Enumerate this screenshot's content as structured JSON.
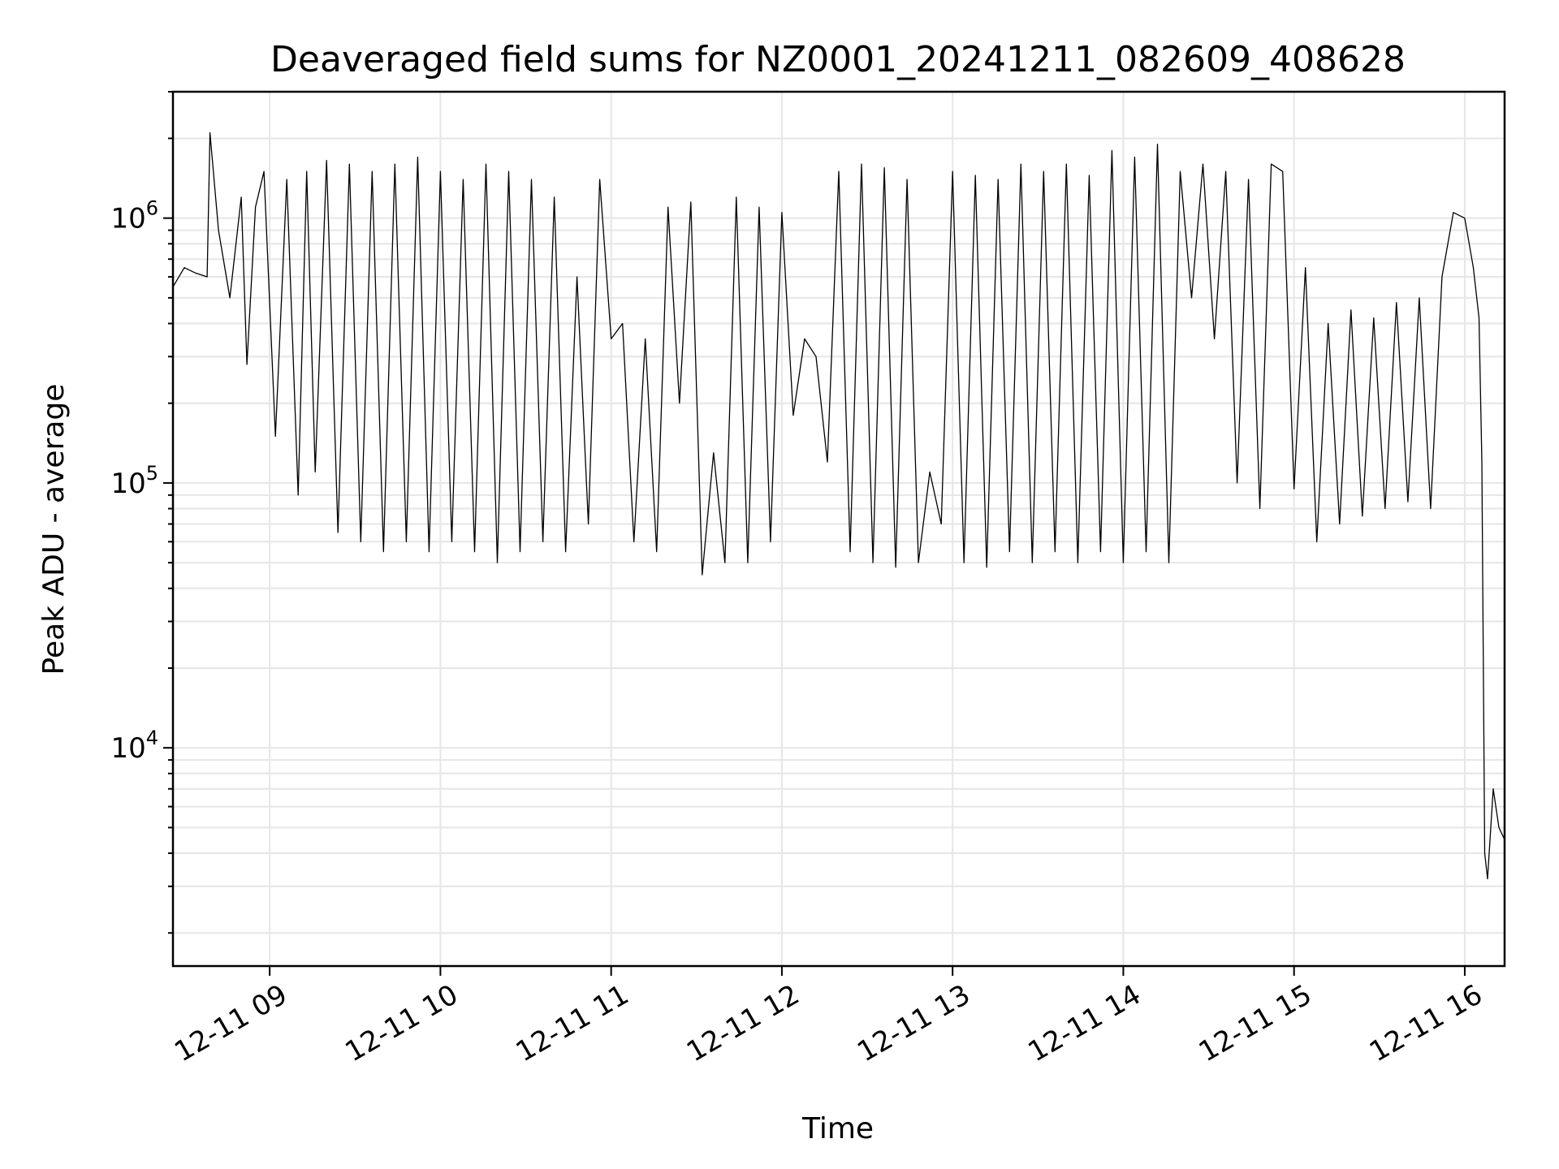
{
  "chart_data": {
    "type": "line",
    "title": "Deaveraged field sums for NZ0001_20241211_082609_408628",
    "xlabel": "Time",
    "ylabel": "Peak ADU - average",
    "xscale": "time",
    "yscale": "log",
    "xlim": [
      "2024-12-11 08:26",
      "2024-12-11 16:14"
    ],
    "ylim": [
      1500,
      3000000
    ],
    "grid": true,
    "line_color": "#000000",
    "grid_color": "#e6e6e6",
    "x_ticks": [
      {
        "value": "2024-12-11 09:00",
        "label": "12-11 09"
      },
      {
        "value": "2024-12-11 10:00",
        "label": "12-11 10"
      },
      {
        "value": "2024-12-11 11:00",
        "label": "12-11 11"
      },
      {
        "value": "2024-12-11 12:00",
        "label": "12-11 12"
      },
      {
        "value": "2024-12-11 13:00",
        "label": "12-11 13"
      },
      {
        "value": "2024-12-11 14:00",
        "label": "12-11 14"
      },
      {
        "value": "2024-12-11 15:00",
        "label": "12-11 15"
      },
      {
        "value": "2024-12-11 16:00",
        "label": "12-11 16"
      }
    ],
    "y_ticks": [
      {
        "value": 10000,
        "base": "10",
        "exp": "4"
      },
      {
        "value": 100000,
        "base": "10",
        "exp": "5"
      },
      {
        "value": 1000000,
        "base": "10",
        "exp": "6"
      }
    ],
    "series": [
      {
        "x": [
          "08:26",
          "08:30",
          "08:34",
          "08:38",
          "08:39",
          "08:42",
          "08:46",
          "08:50",
          "08:52",
          "08:55",
          "08:58",
          "09:02",
          "09:06",
          "09:10",
          "09:13",
          "09:16",
          "09:20",
          "09:24",
          "09:28",
          "09:32",
          "09:36",
          "09:40",
          "09:44",
          "09:48",
          "09:52",
          "09:56",
          "10:00",
          "10:04",
          "10:08",
          "10:12",
          "10:16",
          "10:20",
          "10:24",
          "10:28",
          "10:32",
          "10:36",
          "10:40",
          "10:44",
          "10:48",
          "10:52",
          "10:56",
          "11:00",
          "11:04",
          "11:08",
          "11:12",
          "11:16",
          "11:20",
          "11:24",
          "11:28",
          "11:32",
          "11:36",
          "11:40",
          "11:44",
          "11:48",
          "11:52",
          "11:56",
          "12:00",
          "12:04",
          "12:08",
          "12:12",
          "12:16",
          "12:20",
          "12:24",
          "12:28",
          "12:32",
          "12:36",
          "12:40",
          "12:44",
          "12:48",
          "12:52",
          "12:56",
          "13:00",
          "13:04",
          "13:08",
          "13:12",
          "13:16",
          "13:20",
          "13:24",
          "13:28",
          "13:32",
          "13:36",
          "13:40",
          "13:44",
          "13:48",
          "13:52",
          "13:56",
          "14:00",
          "14:04",
          "14:08",
          "14:12",
          "14:16",
          "14:20",
          "14:24",
          "14:28",
          "14:32",
          "14:36",
          "14:40",
          "14:44",
          "14:48",
          "14:52",
          "14:56",
          "15:00",
          "15:04",
          "15:08",
          "15:12",
          "15:16",
          "15:20",
          "15:24",
          "15:28",
          "15:32",
          "15:36",
          "15:40",
          "15:44",
          "15:48",
          "15:52",
          "15:56",
          "16:00",
          "16:03",
          "16:05",
          "16:06",
          "16:07",
          "16:08",
          "16:10",
          "16:12",
          "16:14"
        ],
        "y": [
          550000,
          650000,
          620000,
          600000,
          2100000,
          900000,
          500000,
          1200000,
          280000,
          1100000,
          1500000,
          150000,
          1400000,
          90000,
          1500000,
          110000,
          1650000,
          65000,
          1600000,
          60000,
          1500000,
          55000,
          1600000,
          60000,
          1700000,
          55000,
          1500000,
          60000,
          1400000,
          55000,
          1600000,
          50000,
          1500000,
          55000,
          1400000,
          60000,
          1200000,
          55000,
          600000,
          70000,
          1400000,
          350000,
          400000,
          60000,
          350000,
          55000,
          1100000,
          200000,
          1150000,
          45000,
          130000,
          50000,
          1200000,
          50000,
          1100000,
          60000,
          1050000,
          180000,
          350000,
          300000,
          120000,
          1500000,
          55000,
          1600000,
          50000,
          1550000,
          48000,
          1400000,
          50000,
          110000,
          70000,
          1500000,
          50000,
          1450000,
          48000,
          1400000,
          55000,
          1600000,
          50000,
          1500000,
          55000,
          1600000,
          50000,
          1450000,
          55000,
          1800000,
          50000,
          1700000,
          55000,
          1900000,
          50000,
          1500000,
          500000,
          1600000,
          350000,
          1500000,
          100000,
          1400000,
          80000,
          1600000,
          1500000,
          95000,
          650000,
          60000,
          400000,
          70000,
          450000,
          75000,
          420000,
          80000,
          480000,
          85000,
          500000,
          80000,
          600000,
          1050000,
          1000000,
          650000,
          420000,
          120000,
          4000,
          3200,
          7000,
          5000,
          4500
        ]
      }
    ]
  }
}
